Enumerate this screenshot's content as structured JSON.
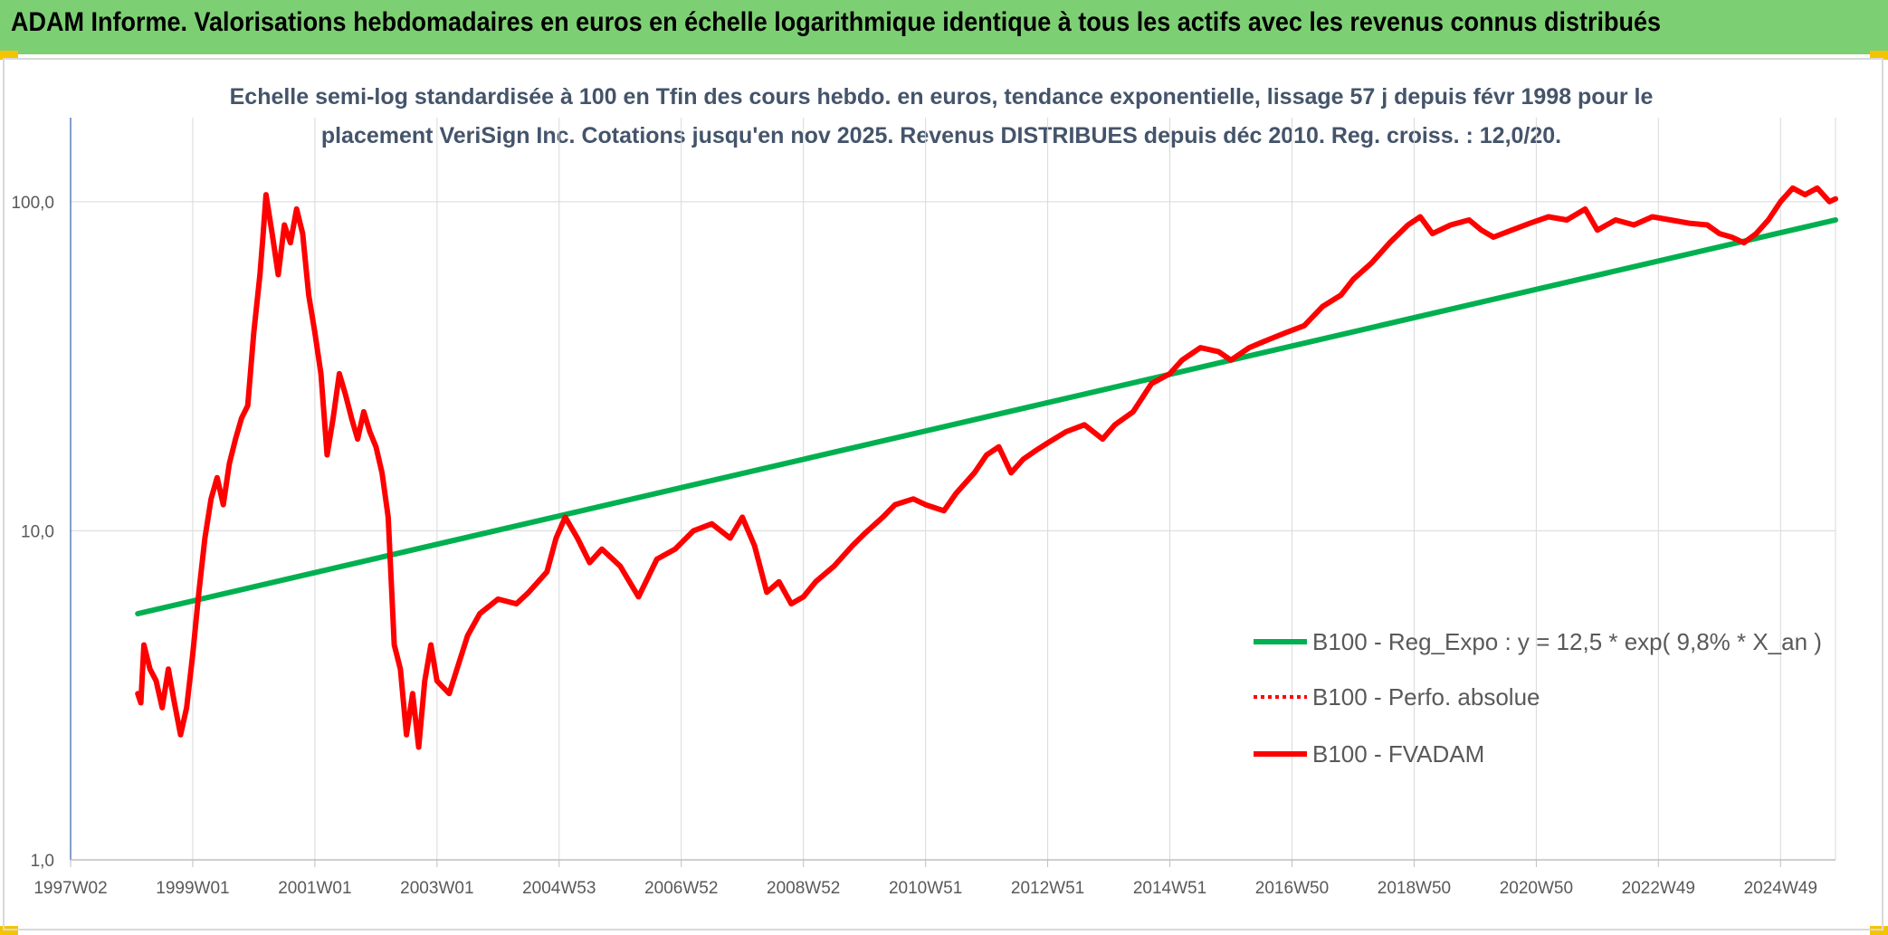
{
  "header": {
    "title": "ADAM Informe. Valorisations hebdomadaires en euros en échelle logarithmique identique à tous les actifs avec les revenus connus distribués"
  },
  "colors": {
    "header_bg": "#7dcf73",
    "regression": "#00b050",
    "fvadam": "#ff0000",
    "grid": "#d9d9d9",
    "corner": "#f5c400"
  },
  "chart_data": {
    "type": "line",
    "title_lines": [
      "Echelle semi-log standardisée à 100 en Tfin des cours hebdo. en euros, tendance exponentielle, lissage 57 j depuis févr 1998 pour le",
      "placement VeriSign Inc. Cotations jusqu'en nov 2025. Revenus DISTRIBUES depuis déc 2010. Reg. croiss. : 12,0/20."
    ],
    "y_scale": "log",
    "ylim": [
      1,
      180
    ],
    "y_ticks": [
      {
        "value": 1,
        "label": "1,0"
      },
      {
        "value": 10,
        "label": "10,0"
      },
      {
        "value": 100,
        "label": "100,0"
      }
    ],
    "xlim": [
      1997.0,
      2025.9
    ],
    "x_ticks": [
      {
        "label": "1997W02",
        "x": 1997.0
      },
      {
        "label": "1999W01",
        "x": 1999.0
      },
      {
        "label": "2001W01",
        "x": 2001.0
      },
      {
        "label": "2003W01",
        "x": 2003.0
      },
      {
        "label": "2004W53",
        "x": 2005.0
      },
      {
        "label": "2006W52",
        "x": 2007.0
      },
      {
        "label": "2008W52",
        "x": 2009.0
      },
      {
        "label": "2010W51",
        "x": 2011.0
      },
      {
        "label": "2012W51",
        "x": 2013.0
      },
      {
        "label": "2014W51",
        "x": 2015.0
      },
      {
        "label": "2016W50",
        "x": 2017.0
      },
      {
        "label": "2018W50",
        "x": 2019.0
      },
      {
        "label": "2020W50",
        "x": 2021.0
      },
      {
        "label": "2022W49",
        "x": 2023.0
      },
      {
        "label": "2024W49",
        "x": 2025.0
      }
    ],
    "legend_position": "bottom-right",
    "series": [
      {
        "name": "B100 - Reg_Expo : y = 12,5 * exp( 9,8% *  X_an )",
        "style": "solid",
        "color": "#00b050",
        "x": [
          1998.1,
          2025.9
        ],
        "y": [
          5.6,
          88
        ]
      },
      {
        "name": "B100 - Perfo. absolue",
        "style": "dotted",
        "color": "#ff0000",
        "x": [],
        "y": []
      },
      {
        "name": "B100 - FVADAM",
        "style": "solid",
        "color": "#ff0000",
        "x": [
          1998.1,
          1998.15,
          1998.2,
          1998.3,
          1998.4,
          1998.5,
          1998.6,
          1998.7,
          1998.8,
          1998.9,
          1999.0,
          1999.1,
          1999.2,
          1999.3,
          1999.4,
          1999.5,
          1999.6,
          1999.7,
          1999.8,
          1999.9,
          2000.0,
          2000.1,
          2000.15,
          2000.2,
          2000.3,
          2000.4,
          2000.5,
          2000.6,
          2000.7,
          2000.8,
          2000.9,
          2001.0,
          2001.1,
          2001.2,
          2001.3,
          2001.4,
          2001.5,
          2001.6,
          2001.7,
          2001.8,
          2001.9,
          2002.0,
          2002.1,
          2002.2,
          2002.3,
          2002.4,
          2002.5,
          2002.6,
          2002.7,
          2002.8,
          2002.9,
          2003.0,
          2003.2,
          2003.5,
          2003.7,
          2004.0,
          2004.3,
          2004.5,
          2004.8,
          2004.95,
          2005.1,
          2005.3,
          2005.5,
          2005.7,
          2006.0,
          2006.3,
          2006.6,
          2006.9,
          2007.2,
          2007.5,
          2007.8,
          2008.0,
          2008.2,
          2008.4,
          2008.6,
          2008.8,
          2009.0,
          2009.2,
          2009.5,
          2009.8,
          2010.0,
          2010.3,
          2010.5,
          2010.8,
          2011.0,
          2011.3,
          2011.5,
          2011.8,
          2012.0,
          2012.2,
          2012.4,
          2012.6,
          2012.8,
          2013.0,
          2013.3,
          2013.6,
          2013.9,
          2014.1,
          2014.4,
          2014.7,
          2015.0,
          2015.2,
          2015.5,
          2015.8,
          2016.0,
          2016.3,
          2016.6,
          2016.9,
          2017.2,
          2017.5,
          2017.8,
          2018.0,
          2018.3,
          2018.6,
          2018.9,
          2019.1,
          2019.3,
          2019.6,
          2019.9,
          2020.1,
          2020.3,
          2020.6,
          2020.9,
          2021.2,
          2021.5,
          2021.8,
          2022.0,
          2022.3,
          2022.6,
          2022.9,
          2023.2,
          2023.5,
          2023.8,
          2024.0,
          2024.2,
          2024.4,
          2024.6,
          2024.8,
          2025.0,
          2025.2,
          2025.4,
          2025.6,
          2025.8,
          2025.9
        ],
        "y": [
          3.2,
          3.0,
          4.5,
          3.8,
          3.5,
          2.9,
          3.8,
          3.0,
          2.4,
          2.9,
          4.2,
          6.5,
          9.5,
          12.5,
          14.5,
          12.0,
          16.0,
          19.0,
          22.0,
          24.0,
          40.0,
          60.0,
          78.0,
          105.0,
          80.0,
          60.0,
          85.0,
          75.0,
          95.0,
          80.0,
          52.0,
          40.0,
          30.0,
          17.0,
          22.0,
          30.0,
          26.0,
          22.0,
          19.0,
          23.0,
          20.0,
          18.0,
          15.0,
          11.0,
          4.5,
          3.8,
          2.4,
          3.2,
          2.2,
          3.5,
          4.5,
          3.5,
          3.2,
          4.8,
          5.6,
          6.2,
          6.0,
          6.5,
          7.5,
          9.5,
          11.0,
          9.5,
          8.0,
          8.8,
          7.8,
          6.3,
          8.2,
          8.8,
          10.0,
          10.5,
          9.5,
          11.0,
          9.0,
          6.5,
          7.0,
          6.0,
          6.3,
          7.0,
          7.8,
          9.0,
          9.8,
          11.0,
          12.0,
          12.5,
          12.0,
          11.5,
          13.0,
          15.0,
          17.0,
          18.0,
          15.0,
          16.5,
          17.5,
          18.5,
          20.0,
          21.0,
          19.0,
          21.0,
          23.0,
          28.0,
          30.0,
          33.0,
          36.0,
          35.0,
          33.0,
          36.0,
          38.0,
          40.0,
          42.0,
          48.0,
          52.0,
          58.0,
          65.0,
          75.0,
          85.0,
          90.0,
          80.0,
          85.0,
          88.0,
          82.0,
          78.0,
          82.0,
          86.0,
          90.0,
          88.0,
          95.0,
          82.0,
          88.0,
          85.0,
          90.0,
          88.0,
          86.0,
          85.0,
          80.0,
          78.0,
          75.0,
          80.0,
          88.0,
          100.0,
          110.0,
          105.0,
          110.0,
          100.0,
          102.0
        ]
      }
    ]
  }
}
